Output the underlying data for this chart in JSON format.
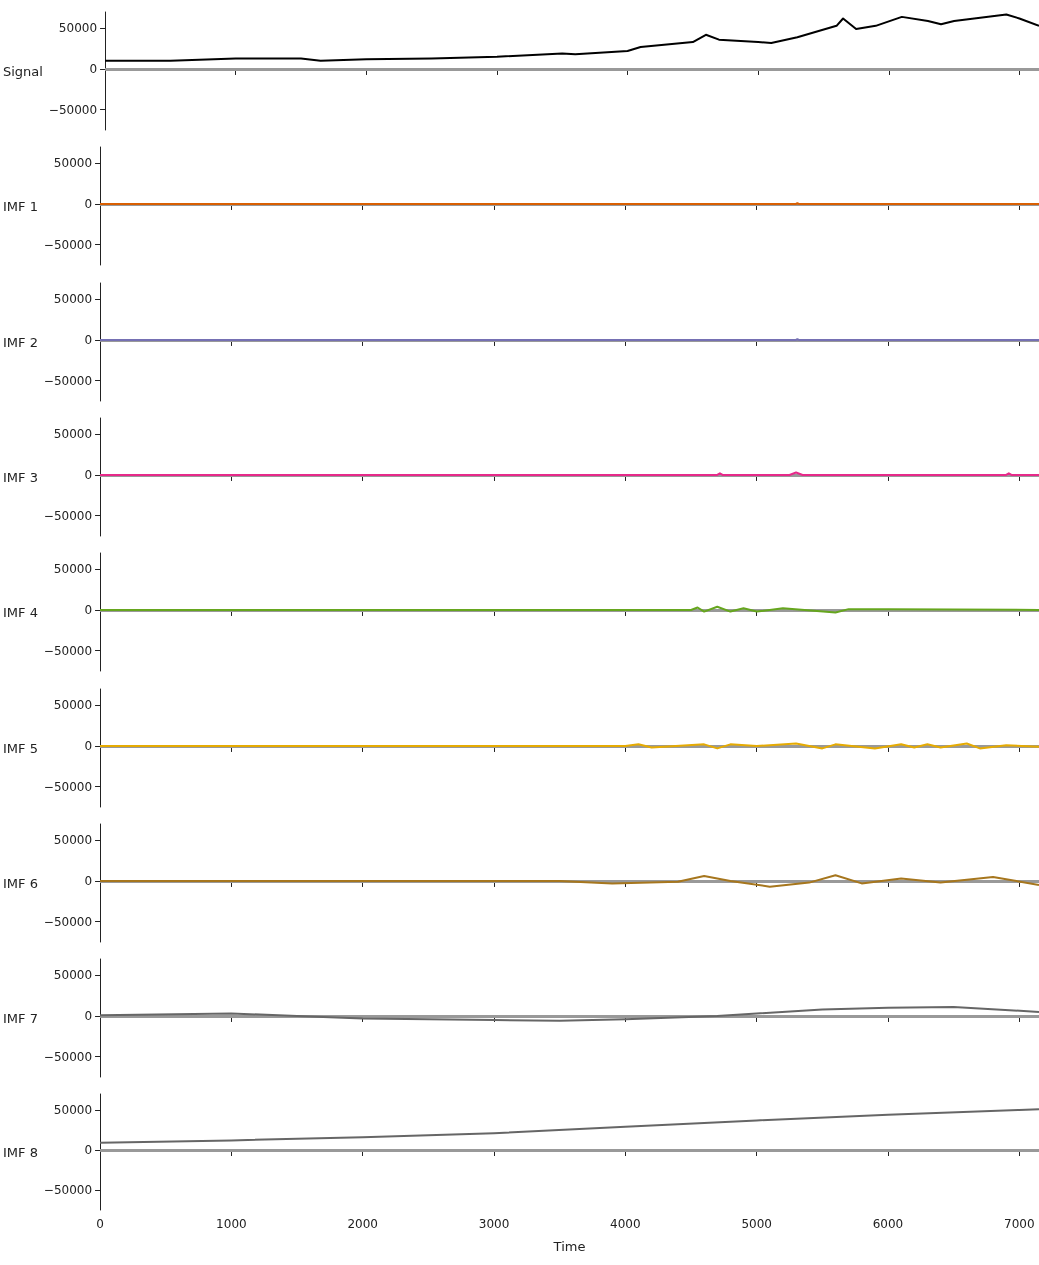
{
  "chart_data": [
    {
      "type": "line",
      "ylabel": "Signal",
      "color": "#000000",
      "x": [
        0,
        500,
        1000,
        1500,
        1650,
        2000,
        2500,
        3000,
        3500,
        3600,
        4000,
        4100,
        4500,
        4600,
        4700,
        5000,
        5100,
        5300,
        5600,
        5650,
        5750,
        5900,
        6100,
        6300,
        6400,
        6500,
        6900,
        7000,
        7150
      ],
      "values": [
        10000,
        10000,
        13000,
        13000,
        10000,
        12000,
        13000,
        15000,
        19000,
        18000,
        22000,
        27000,
        33000,
        42000,
        36000,
        33000,
        32000,
        39000,
        53000,
        62000,
        49000,
        53000,
        64000,
        59000,
        55000,
        59000,
        67000,
        62000,
        53000
      ],
      "xlim": [
        0,
        7150
      ],
      "xticks": [
        0,
        1000,
        2000,
        3000,
        4000,
        5000,
        6000,
        7000
      ],
      "ylim": [
        -75000,
        70000
      ],
      "yticks": [
        -50000,
        0,
        50000
      ],
      "tick_labels": "y",
      "ref_lines": [
        {
          "axis": "y",
          "value": 0,
          "color": "#999999"
        }
      ]
    },
    {
      "type": "line",
      "ylabel": "IMF 1",
      "color": "#d95f02",
      "x": [
        0,
        3000,
        5300,
        5310,
        5320,
        6000,
        7150
      ],
      "values": [
        0,
        0,
        0,
        1000,
        0,
        0,
        0
      ],
      "xlim": [
        0,
        7150
      ],
      "xticks": [
        0,
        1000,
        2000,
        3000,
        4000,
        5000,
        6000,
        7000
      ],
      "ylim": [
        -75000,
        70000
      ],
      "yticks": [
        -50000,
        0,
        50000
      ],
      "tick_labels": "y",
      "ref_lines": [
        {
          "axis": "y",
          "value": 0,
          "color": "#999999"
        }
      ]
    },
    {
      "type": "line",
      "ylabel": "IMF 2",
      "color": "#7570b3",
      "x": [
        0,
        3000,
        5300,
        5310,
        5320,
        6000,
        7150
      ],
      "values": [
        0,
        0,
        0,
        1000,
        0,
        0,
        0
      ],
      "xlim": [
        0,
        7150
      ],
      "xticks": [
        0,
        1000,
        2000,
        3000,
        4000,
        5000,
        6000,
        7000
      ],
      "ylim": [
        -75000,
        70000
      ],
      "yticks": [
        -50000,
        0,
        50000
      ],
      "tick_labels": "y",
      "ref_lines": [
        {
          "axis": "y",
          "value": 0,
          "color": "#999999"
        }
      ]
    },
    {
      "type": "line",
      "ylabel": "IMF 3",
      "color": "#e7298a",
      "x": [
        0,
        4700,
        4720,
        4740,
        5250,
        5300,
        5350,
        6900,
        6920,
        6940,
        7150
      ],
      "values": [
        0,
        0,
        2000,
        0,
        0,
        3000,
        0,
        0,
        2000,
        0,
        0
      ],
      "xlim": [
        0,
        7150
      ],
      "xticks": [
        0,
        1000,
        2000,
        3000,
        4000,
        5000,
        6000,
        7000
      ],
      "ylim": [
        -75000,
        70000
      ],
      "yticks": [
        -50000,
        0,
        50000
      ],
      "tick_labels": "y",
      "ref_lines": [
        {
          "axis": "y",
          "value": 0,
          "color": "#999999"
        }
      ]
    },
    {
      "type": "line",
      "ylabel": "IMF 4",
      "color": "#66a61e",
      "x": [
        0,
        4500,
        4550,
        4600,
        4700,
        4800,
        4900,
        5000,
        5200,
        5600,
        5700,
        6000,
        7150
      ],
      "values": [
        0,
        0,
        3000,
        -2000,
        4000,
        -2000,
        2000,
        -2000,
        2000,
        -3000,
        1000,
        1000,
        0
      ],
      "xlim": [
        0,
        7150
      ],
      "xticks": [
        0,
        1000,
        2000,
        3000,
        4000,
        5000,
        6000,
        7000
      ],
      "ylim": [
        -75000,
        70000
      ],
      "yticks": [
        -50000,
        0,
        50000
      ],
      "tick_labels": "y",
      "ref_lines": [
        {
          "axis": "y",
          "value": 0,
          "color": "#999999"
        }
      ]
    },
    {
      "type": "line",
      "ylabel": "IMF 5",
      "color": "#e6ab02",
      "x": [
        0,
        4000,
        4100,
        4200,
        4600,
        4700,
        4800,
        5000,
        5300,
        5500,
        5600,
        5900,
        6100,
        6200,
        6300,
        6400,
        6600,
        6700,
        6900,
        7150
      ],
      "values": [
        0,
        0,
        2000,
        -2000,
        2000,
        -3000,
        2000,
        0,
        3000,
        -3000,
        2000,
        -3000,
        2000,
        -2000,
        2000,
        -2000,
        3000,
        -3000,
        1000,
        -1000
      ],
      "xlim": [
        0,
        7150
      ],
      "xticks": [
        0,
        1000,
        2000,
        3000,
        4000,
        5000,
        6000,
        7000
      ],
      "ylim": [
        -75000,
        70000
      ],
      "yticks": [
        -50000,
        0,
        50000
      ],
      "tick_labels": "y",
      "ref_lines": [
        {
          "axis": "y",
          "value": 0,
          "color": "#999999"
        }
      ]
    },
    {
      "type": "line",
      "ylabel": "IMF 6",
      "color": "#a6761d",
      "x": [
        0,
        3500,
        3900,
        4400,
        4600,
        4800,
        5100,
        5400,
        5600,
        5800,
        6100,
        6400,
        6800,
        7150
      ],
      "values": [
        0,
        0,
        -3000,
        -1000,
        6000,
        0,
        -7000,
        -2000,
        7000,
        -3000,
        3000,
        -2000,
        5000,
        -5000
      ],
      "xlim": [
        0,
        7150
      ],
      "xticks": [
        0,
        1000,
        2000,
        3000,
        4000,
        5000,
        6000,
        7000
      ],
      "ylim": [
        -75000,
        70000
      ],
      "yticks": [
        -50000,
        0,
        50000
      ],
      "tick_labels": "y",
      "ref_lines": [
        {
          "axis": "y",
          "value": 0,
          "color": "#999999"
        }
      ]
    },
    {
      "type": "line",
      "ylabel": "IMF 7",
      "color": "#666666",
      "x": [
        0,
        1000,
        1500,
        2000,
        3000,
        3500,
        4000,
        4700,
        5000,
        5500,
        6000,
        6500,
        7150
      ],
      "values": [
        1000,
        3000,
        0,
        -3000,
        -5000,
        -6000,
        -4000,
        0,
        3000,
        8000,
        10000,
        11000,
        5000
      ],
      "xlim": [
        0,
        7150
      ],
      "xticks": [
        0,
        1000,
        2000,
        3000,
        4000,
        5000,
        6000,
        7000
      ],
      "ylim": [
        -75000,
        70000
      ],
      "yticks": [
        -50000,
        0,
        50000
      ],
      "tick_labels": "y",
      "ref_lines": [
        {
          "axis": "y",
          "value": 0,
          "color": "#999999"
        }
      ]
    },
    {
      "type": "line",
      "ylabel": "IMF 8",
      "xlabel": "Time",
      "color": "#666666",
      "x": [
        0,
        1000,
        2000,
        3000,
        4000,
        5000,
        6000,
        7000,
        7150
      ],
      "values": [
        9000,
        12000,
        16000,
        21000,
        29000,
        37000,
        44000,
        50000,
        51000
      ],
      "xlim": [
        0,
        7150
      ],
      "xticks": [
        0,
        1000,
        2000,
        3000,
        4000,
        5000,
        6000,
        7000
      ],
      "ylim": [
        -75000,
        70000
      ],
      "yticks": [
        -50000,
        0,
        50000
      ],
      "ref_lines": [
        {
          "axis": "y",
          "value": 0,
          "color": "#999999"
        }
      ]
    }
  ]
}
